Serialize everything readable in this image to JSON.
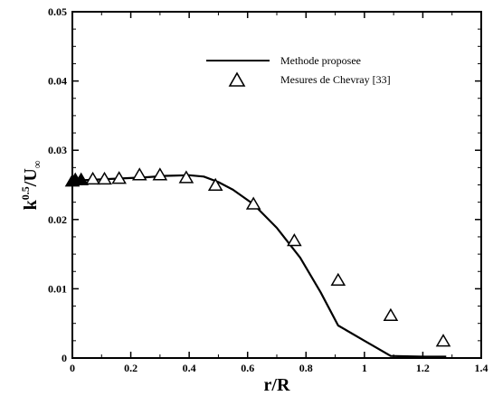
{
  "chart_data": {
    "type": "line",
    "xlabel": "r/R",
    "ylabel": {
      "base": "k",
      "exponent": "0.5",
      "over": "/U",
      "subscript": "∞"
    },
    "xlim": [
      0,
      1.4
    ],
    "ylim": [
      0,
      0.05
    ],
    "xticks": [
      "0",
      "0.2",
      "0.4",
      "0.6",
      "0.8",
      "1",
      "1.2",
      "1.4"
    ],
    "yticks": [
      "0",
      "0.01",
      "0.02",
      "0.03",
      "0.04",
      "0.05"
    ],
    "grid": false,
    "legend_position": "top-right",
    "series": [
      {
        "name": "Methode proposee",
        "kind": "line",
        "color": "#000000",
        "x": [
          0,
          0.05,
          0.15,
          0.25,
          0.32,
          0.4,
          0.45,
          0.5,
          0.55,
          0.62,
          0.7,
          0.78,
          0.85,
          0.91,
          1.0,
          1.09,
          1.2,
          1.28
        ],
        "y": [
          0.0256,
          0.0257,
          0.0259,
          0.0261,
          0.0263,
          0.0264,
          0.0262,
          0.0254,
          0.0243,
          0.0222,
          0.0188,
          0.0145,
          0.0095,
          0.0047,
          0.0025,
          0.0003,
          0.0002,
          0.0002
        ]
      },
      {
        "name": "Mesures de Chevray [33]",
        "kind": "scatter",
        "marker": "triangle",
        "color": "#000000",
        "x": [
          0.0,
          0.01,
          0.03,
          0.07,
          0.11,
          0.16,
          0.23,
          0.3,
          0.39,
          0.49,
          0.62,
          0.76,
          0.91,
          1.09,
          1.27
        ],
        "y": [
          0.0255,
          0.0257,
          0.0257,
          0.0258,
          0.0258,
          0.0259,
          0.0264,
          0.0264,
          0.026,
          0.0249,
          0.0222,
          0.0169,
          0.0112,
          0.0061,
          0.0024
        ]
      }
    ]
  }
}
